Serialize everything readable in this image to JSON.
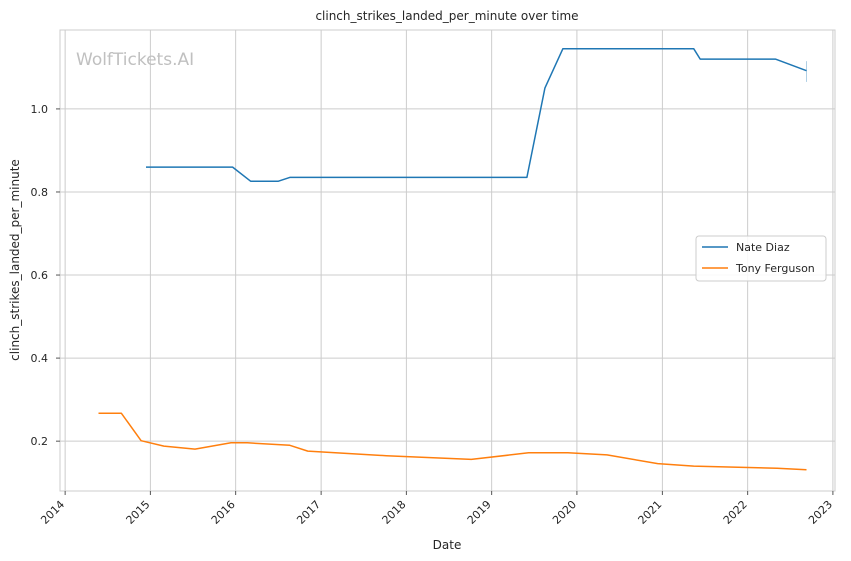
{
  "chart_data": {
    "type": "line",
    "title": "clinch_strikes_landed_per_minute over time",
    "xlabel": "Date",
    "ylabel": "clinch_strikes_landed_per_minute",
    "watermark": "WolfTickets.AI",
    "x_ticks": [
      "2014",
      "2015",
      "2016",
      "2017",
      "2018",
      "2019",
      "2020",
      "2021",
      "2022",
      "2023"
    ],
    "y_ticks": [
      "0.2",
      "0.4",
      "0.6",
      "0.8",
      "1.0"
    ],
    "xlim": [
      "2013-12-10",
      "2023-01-10"
    ],
    "ylim": [
      0.08,
      1.19
    ],
    "grid": true,
    "legend_position": "center-right",
    "series": [
      {
        "name": "Nate Diaz",
        "color": "#1f77b4",
        "points": [
          [
            "2014-12-13",
            0.86
          ],
          [
            "2015-12-19",
            0.86
          ],
          [
            "2016-03-05",
            0.826
          ],
          [
            "2016-07-02",
            0.826
          ],
          [
            "2016-08-20",
            0.835
          ],
          [
            "2019-06-01",
            0.835
          ],
          [
            "2019-08-17",
            1.05
          ],
          [
            "2019-11-02",
            1.145
          ],
          [
            "2021-05-15",
            1.145
          ],
          [
            "2021-06-12",
            1.12
          ],
          [
            "2022-04-30",
            1.12
          ],
          [
            "2022-09-10",
            1.092
          ]
        ],
        "error_bar": {
          "date": "2022-09-10",
          "low": 1.065,
          "high": 1.115
        }
      },
      {
        "name": "Tony Ferguson",
        "color": "#ff7f0e",
        "points": [
          [
            "2014-05-24",
            0.267
          ],
          [
            "2014-08-30",
            0.267
          ],
          [
            "2014-11-22",
            0.201
          ],
          [
            "2015-02-28",
            0.188
          ],
          [
            "2015-07-11",
            0.181
          ],
          [
            "2015-12-12",
            0.196
          ],
          [
            "2016-02-20",
            0.196
          ],
          [
            "2016-08-20",
            0.19
          ],
          [
            "2016-11-05",
            0.176
          ],
          [
            "2017-10-07",
            0.165
          ],
          [
            "2018-10-06",
            0.156
          ],
          [
            "2019-06-08",
            0.172
          ],
          [
            "2019-11-23",
            0.172
          ],
          [
            "2020-05-09",
            0.167
          ],
          [
            "2020-12-12",
            0.146
          ],
          [
            "2021-05-15",
            0.14
          ],
          [
            "2022-05-07",
            0.135
          ],
          [
            "2022-09-10",
            0.131
          ]
        ]
      }
    ]
  }
}
